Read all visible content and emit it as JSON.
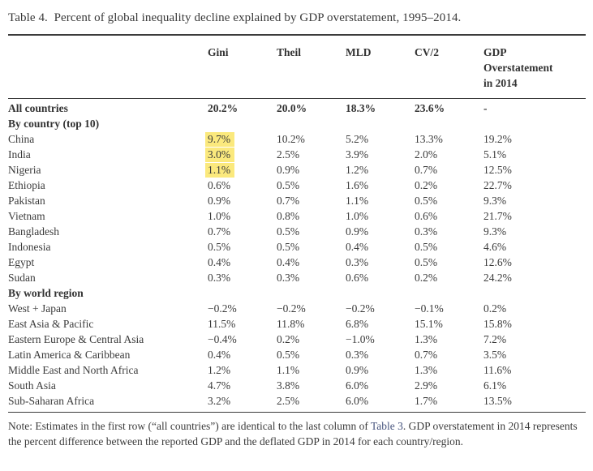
{
  "title": "Table 4.  Percent of global inequality decline explained by GDP overstatement, 1995–2014.",
  "table": {
    "col_headers": [
      "",
      "Gini",
      "Theil",
      "MLD",
      "CV/2",
      "GDP\nOverstatement\nin 2014"
    ],
    "rows": [
      {
        "label": "All countries",
        "bold": true,
        "values": [
          "20.2%",
          "20.0%",
          "18.3%",
          "23.6%",
          "-"
        ]
      },
      {
        "label": "By country (top 10)",
        "bold": true,
        "section": true,
        "values": [
          "",
          "",
          "",
          "",
          ""
        ]
      },
      {
        "label": "China",
        "values": [
          "9.7%",
          "10.2%",
          "5.2%",
          "13.3%",
          "19.2%"
        ],
        "highlight_col": 0
      },
      {
        "label": "India",
        "values": [
          "3.0%",
          "2.5%",
          "3.9%",
          "2.0%",
          "5.1%"
        ],
        "highlight_col": 0
      },
      {
        "label": "Nigeria",
        "values": [
          "1.1%",
          "0.9%",
          "1.2%",
          "0.7%",
          "12.5%"
        ],
        "highlight_col": 0
      },
      {
        "label": "Ethiopia",
        "values": [
          "0.6%",
          "0.5%",
          "1.6%",
          "0.2%",
          "22.7%"
        ]
      },
      {
        "label": "Pakistan",
        "values": [
          "0.9%",
          "0.7%",
          "1.1%",
          "0.5%",
          "9.3%"
        ]
      },
      {
        "label": "Vietnam",
        "values": [
          "1.0%",
          "0.8%",
          "1.0%",
          "0.6%",
          "21.7%"
        ]
      },
      {
        "label": "Bangladesh",
        "values": [
          "0.7%",
          "0.5%",
          "0.9%",
          "0.3%",
          "9.3%"
        ]
      },
      {
        "label": "Indonesia",
        "values": [
          "0.5%",
          "0.5%",
          "0.4%",
          "0.5%",
          "4.6%"
        ]
      },
      {
        "label": "Egypt",
        "values": [
          "0.4%",
          "0.4%",
          "0.3%",
          "0.5%",
          "12.6%"
        ]
      },
      {
        "label": "Sudan",
        "values": [
          "0.3%",
          "0.3%",
          "0.6%",
          "0.2%",
          "24.2%"
        ]
      },
      {
        "label": "By world region",
        "bold": true,
        "section": true,
        "values": [
          "",
          "",
          "",
          "",
          ""
        ]
      },
      {
        "label": "West + Japan",
        "values": [
          "−0.2%",
          "−0.2%",
          "−0.2%",
          "−0.1%",
          "0.2%"
        ]
      },
      {
        "label": "East Asia & Pacific",
        "values": [
          "11.5%",
          "11.8%",
          "6.8%",
          "15.1%",
          "15.8%"
        ]
      },
      {
        "label": "Eastern Europe & Central Asia",
        "values": [
          "−0.4%",
          "0.2%",
          "−1.0%",
          "1.3%",
          "7.2%"
        ]
      },
      {
        "label": "Latin America & Caribbean",
        "values": [
          "0.4%",
          "0.5%",
          "0.3%",
          "0.7%",
          "3.5%"
        ]
      },
      {
        "label": "Middle East and North Africa",
        "values": [
          "1.2%",
          "1.1%",
          "0.9%",
          "1.3%",
          "11.6%"
        ]
      },
      {
        "label": "South Asia",
        "values": [
          "4.7%",
          "3.8%",
          "6.0%",
          "2.9%",
          "6.1%"
        ]
      },
      {
        "label": "Sub-Saharan Africa",
        "values": [
          "3.2%",
          "2.5%",
          "6.0%",
          "1.7%",
          "13.5%"
        ]
      }
    ]
  },
  "note": {
    "before_link": "Note: Estimates in the first row (“all countries”) are identical to the last column of ",
    "link_text": "Table 3",
    "after_link": ". GDP overstatement in 2014 represents the percent difference between the reported GDP and the deflated GDP in 2014 for each country/region."
  },
  "colors": {
    "text": "#3b3b3b",
    "rule": "#3b3b3b",
    "link_blue": "#47547e",
    "highlight_yellow": "#fbe97d",
    "background": "#ffffff"
  }
}
